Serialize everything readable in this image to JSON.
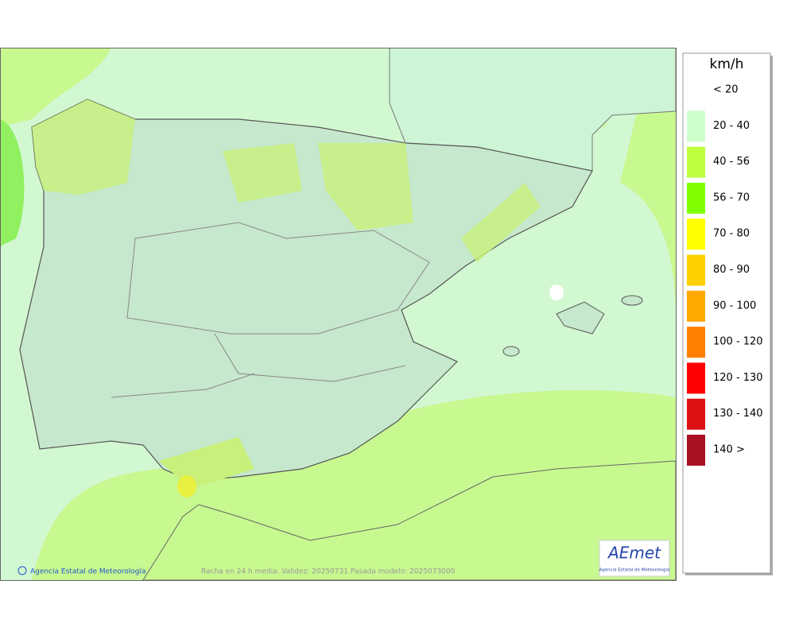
{
  "legend": {
    "title": "km/h",
    "items": [
      {
        "label": "< 20",
        "color": null
      },
      {
        "label": "20 - 40",
        "color": "#ccffcc"
      },
      {
        "label": "40 - 56",
        "color": "#c0ff40"
      },
      {
        "label": "56 - 70",
        "color": "#80ff00"
      },
      {
        "label": "70 - 80",
        "color": "#ffff00"
      },
      {
        "label": "80 - 90",
        "color": "#ffd000"
      },
      {
        "label": "90 - 100",
        "color": "#ffa800"
      },
      {
        "label": "100 - 120",
        "color": "#ff8000"
      },
      {
        "label": "120 - 130",
        "color": "#ff0000"
      },
      {
        "label": "130 - 140",
        "color": "#dd1111"
      },
      {
        "label": "140 >",
        "color": "#aa1122"
      }
    ]
  },
  "footer": {
    "credit": "Agencia Estatal de Meteorología",
    "caption": "Racha en 24 h media. Validez: 20250731 Pasada modelo: 2025073000"
  },
  "logo": {
    "name": "AEmet",
    "subtitle": "Agencia Estatal de Meteorología"
  }
}
